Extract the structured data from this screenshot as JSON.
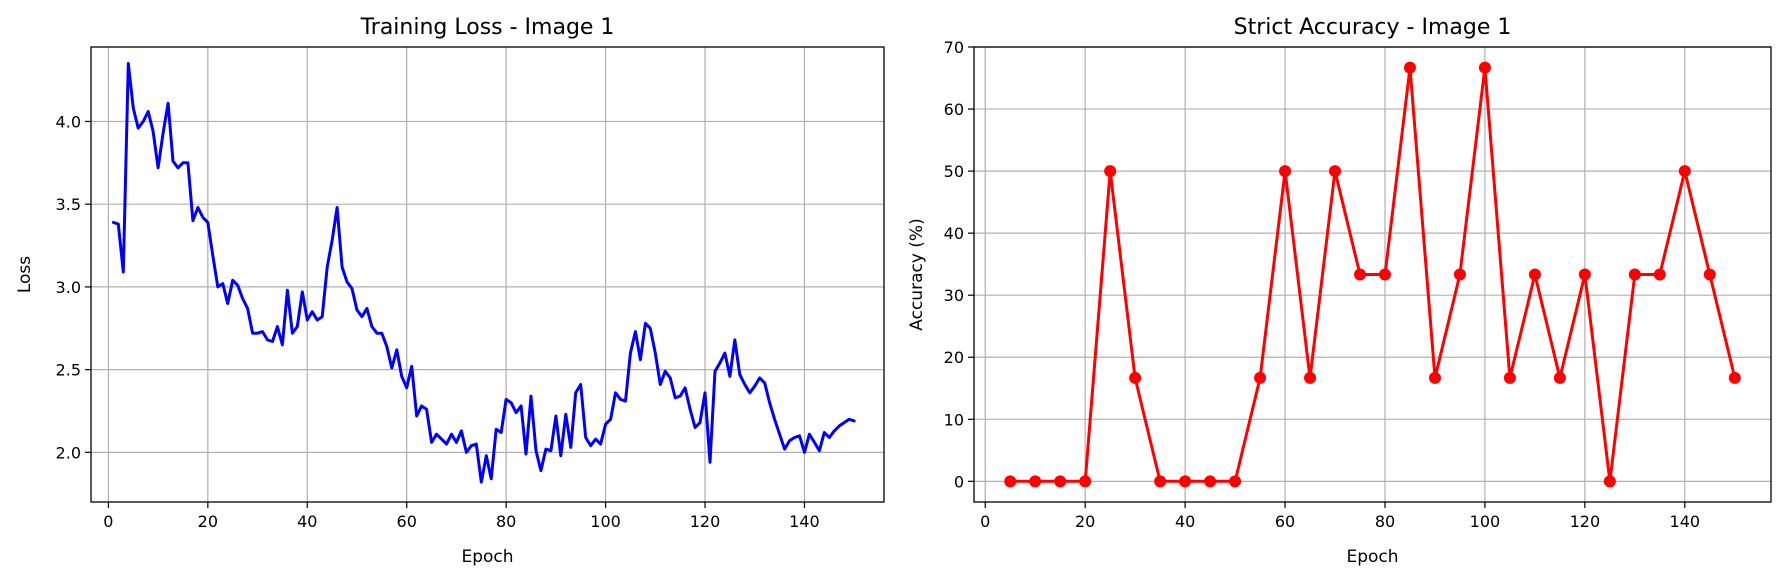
{
  "chart_data": [
    {
      "type": "line",
      "title": "Training Loss - Image 1",
      "xlabel": "Epoch",
      "ylabel": "Loss",
      "xlim": [
        -3.5,
        156
      ],
      "ylim": [
        1.7,
        4.45
      ],
      "xticks": [
        0,
        20,
        40,
        60,
        80,
        100,
        120,
        140
      ],
      "yticks": [
        2.0,
        2.5,
        3.0,
        3.5,
        4.0
      ],
      "grid": true,
      "series": [
        {
          "color": "#0000ff",
          "marker": "none",
          "x": [
            1,
            2,
            3,
            4,
            5,
            6,
            7,
            8,
            9,
            10,
            11,
            12,
            13,
            14,
            15,
            16,
            17,
            18,
            19,
            20,
            21,
            22,
            23,
            24,
            25,
            26,
            27,
            28,
            29,
            30,
            31,
            32,
            33,
            34,
            35,
            36,
            37,
            38,
            39,
            40,
            41,
            42,
            43,
            44,
            45,
            46,
            47,
            48,
            49,
            50,
            51,
            52,
            53,
            54,
            55,
            56,
            57,
            58,
            59,
            60,
            61,
            62,
            63,
            64,
            65,
            66,
            67,
            68,
            69,
            70,
            71,
            72,
            73,
            74,
            75,
            76,
            77,
            78,
            79,
            80,
            81,
            82,
            83,
            84,
            85,
            86,
            87,
            88,
            89,
            90,
            91,
            92,
            93,
            94,
            95,
            96,
            97,
            98,
            99,
            100,
            101,
            102,
            103,
            104,
            105,
            106,
            107,
            108,
            109,
            110,
            111,
            112,
            113,
            114,
            115,
            116,
            117,
            118,
            119,
            120,
            121,
            122,
            123,
            124,
            125,
            126,
            127,
            128,
            129,
            130,
            131,
            132,
            133,
            134,
            135,
            136,
            137,
            138,
            139,
            140,
            141,
            142,
            143,
            144,
            145,
            146,
            147,
            148,
            149,
            150
          ],
          "values": [
            3.39,
            3.38,
            3.09,
            4.35,
            4.08,
            3.96,
            4.0,
            4.06,
            3.94,
            3.72,
            3.93,
            4.11,
            3.76,
            3.72,
            3.75,
            3.75,
            3.4,
            3.48,
            3.42,
            3.39,
            3.19,
            3.0,
            3.02,
            2.9,
            3.04,
            3.01,
            2.93,
            2.87,
            2.72,
            2.72,
            2.73,
            2.68,
            2.67,
            2.76,
            2.65,
            2.98,
            2.72,
            2.76,
            2.97,
            2.8,
            2.85,
            2.8,
            2.82,
            3.12,
            3.28,
            3.48,
            3.12,
            3.03,
            2.99,
            2.86,
            2.82,
            2.87,
            2.76,
            2.72,
            2.72,
            2.64,
            2.51,
            2.62,
            2.46,
            2.39,
            2.52,
            2.22,
            2.28,
            2.26,
            2.06,
            2.11,
            2.08,
            2.05,
            2.11,
            2.06,
            2.13,
            2.0,
            2.04,
            2.05,
            1.82,
            1.98,
            1.84,
            2.14,
            2.12,
            2.32,
            2.3,
            2.24,
            2.28,
            1.99,
            2.34,
            2.01,
            1.89,
            2.02,
            2.01,
            2.22,
            1.98,
            2.23,
            2.03,
            2.36,
            2.41,
            2.09,
            2.04,
            2.08,
            2.05,
            2.17,
            2.2,
            2.36,
            2.32,
            2.31,
            2.6,
            2.73,
            2.56,
            2.78,
            2.75,
            2.6,
            2.41,
            2.49,
            2.45,
            2.33,
            2.34,
            2.39,
            2.26,
            2.15,
            2.18,
            2.36,
            1.94,
            2.49,
            2.54,
            2.6,
            2.46,
            2.68,
            2.47,
            2.41,
            2.36,
            2.4,
            2.45,
            2.42,
            2.3,
            2.2,
            2.11,
            2.02,
            2.07,
            2.09,
            2.1,
            2.0,
            2.11,
            2.06,
            2.01,
            2.12,
            2.09,
            2.13,
            2.16,
            2.18,
            2.2,
            2.19
          ]
        }
      ]
    },
    {
      "type": "line",
      "title": "Strict Accuracy - Image 1",
      "xlabel": "Epoch",
      "ylabel": "Accuracy (%)",
      "xlim": [
        -2.25,
        157.25
      ],
      "ylim": [
        -3.33,
        70
      ],
      "xticks": [
        0,
        20,
        40,
        60,
        80,
        100,
        120,
        140
      ],
      "yticks": [
        0,
        10,
        20,
        30,
        40,
        50,
        60,
        70
      ],
      "grid": true,
      "series": [
        {
          "color": "#ff0000",
          "marker": "circle",
          "x": [
            5,
            10,
            15,
            20,
            25,
            30,
            35,
            40,
            45,
            50,
            55,
            60,
            65,
            70,
            75,
            80,
            85,
            90,
            95,
            100,
            105,
            110,
            115,
            120,
            125,
            130,
            135,
            140,
            145,
            150
          ],
          "values": [
            0,
            0,
            0,
            0,
            50,
            16.67,
            0,
            0,
            0,
            0,
            16.67,
            50,
            16.67,
            50,
            33.33,
            33.33,
            66.67,
            16.67,
            33.33,
            66.67,
            16.67,
            33.33,
            16.67,
            33.33,
            0,
            33.33,
            33.33,
            50,
            33.33,
            16.67
          ]
        }
      ]
    }
  ]
}
